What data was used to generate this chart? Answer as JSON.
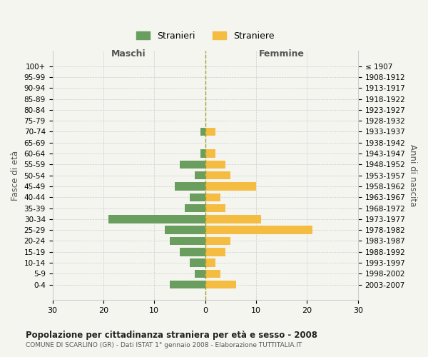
{
  "age_groups": [
    "100+",
    "95-99",
    "90-94",
    "85-89",
    "80-84",
    "75-79",
    "70-74",
    "65-69",
    "60-64",
    "55-59",
    "50-54",
    "45-49",
    "40-44",
    "35-39",
    "30-34",
    "25-29",
    "20-24",
    "15-19",
    "10-14",
    "5-9",
    "0-4"
  ],
  "birth_years": [
    "≤ 1907",
    "1908-1912",
    "1913-1917",
    "1918-1922",
    "1923-1927",
    "1928-1932",
    "1933-1937",
    "1938-1942",
    "1943-1947",
    "1948-1952",
    "1953-1957",
    "1958-1962",
    "1963-1967",
    "1968-1972",
    "1973-1977",
    "1978-1982",
    "1983-1987",
    "1988-1992",
    "1993-1997",
    "1998-2002",
    "2003-2007"
  ],
  "maschi": [
    0,
    0,
    0,
    0,
    0,
    0,
    1,
    0,
    1,
    5,
    2,
    6,
    3,
    4,
    19,
    8,
    7,
    5,
    3,
    2,
    7
  ],
  "femmine": [
    0,
    0,
    0,
    0,
    0,
    0,
    2,
    0,
    2,
    4,
    5,
    10,
    3,
    4,
    11,
    21,
    5,
    4,
    2,
    3,
    6
  ],
  "maschi_color": "#6a9e5e",
  "femmine_color": "#f5bc42",
  "center_line_color": "#a0a030",
  "grid_color": "#cccccc",
  "bg_color": "#f5f5f0",
  "title": "Popolazione per cittadinanza straniera per età e sesso - 2008",
  "subtitle": "COMUNE DI SCARLINO (GR) - Dati ISTAT 1° gennaio 2008 - Elaborazione TUTTITALIA.IT",
  "xlabel_left": "Maschi",
  "xlabel_right": "Femmine",
  "ylabel_left": "Fasce di età",
  "ylabel_right": "Anni di nascita",
  "legend_maschi": "Stranieri",
  "legend_femmine": "Straniere",
  "xlim": 30
}
